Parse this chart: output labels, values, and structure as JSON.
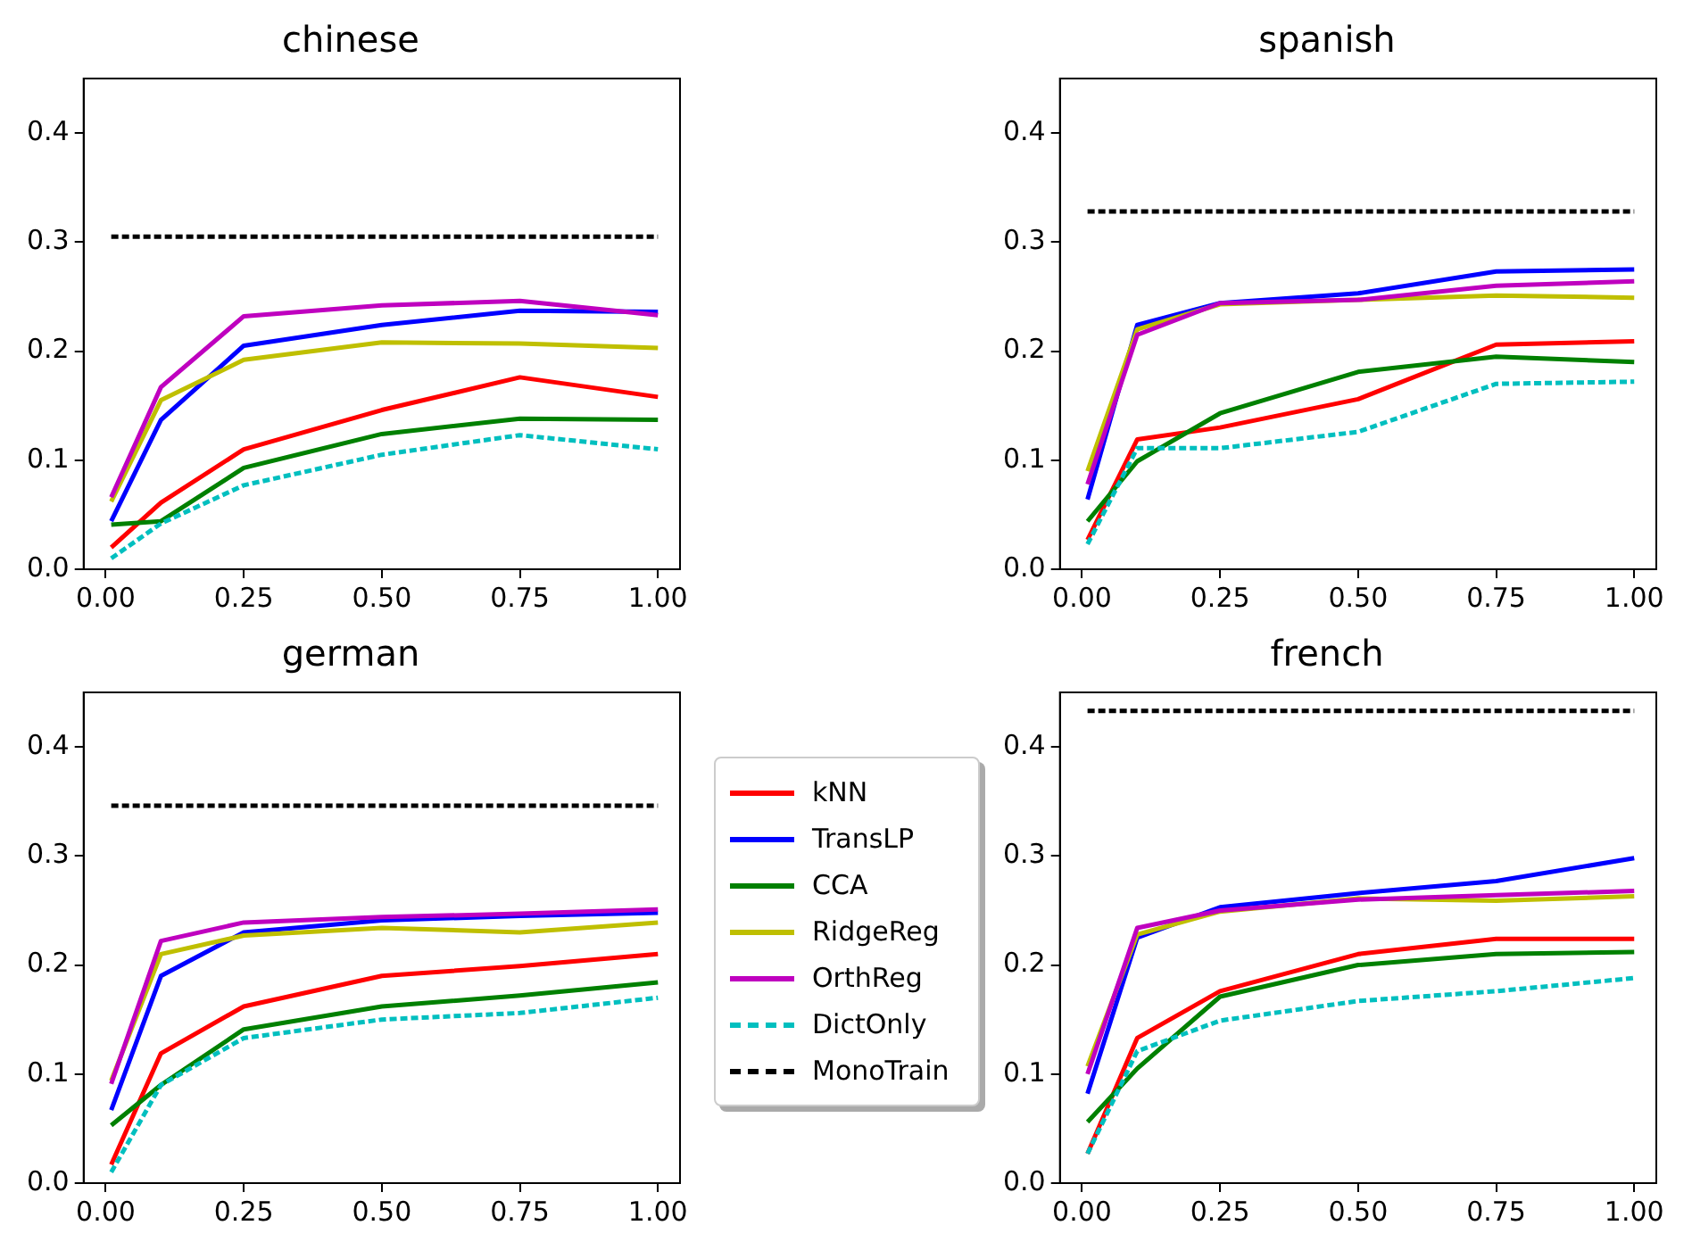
{
  "chart_data": [
    {
      "type": "line",
      "title": "chinese",
      "x": [
        0.01,
        0.1,
        0.25,
        0.5,
        0.75,
        1.0
      ],
      "xlim": [
        -0.04,
        1.04
      ],
      "xticks": [
        {
          "value": 0,
          "label": "0.00"
        },
        {
          "value": 0.25,
          "label": "0.25"
        },
        {
          "value": 0.5,
          "label": "0.50"
        },
        {
          "value": 0.75,
          "label": "0.75"
        },
        {
          "value": 1,
          "label": "1.00"
        }
      ],
      "ylim": [
        0,
        0.45
      ],
      "yticks": [
        {
          "value": 0,
          "label": "0.0"
        },
        {
          "value": 0.1,
          "label": "0.1"
        },
        {
          "value": 0.2,
          "label": "0.2"
        },
        {
          "value": 0.3,
          "label": "0.3"
        },
        {
          "value": 0.4,
          "label": "0.4"
        }
      ],
      "grid": false,
      "marker": "none",
      "series": [
        {
          "color": "#ff0000",
          "values": [
            0.02,
            0.061,
            0.11,
            0.146,
            0.176,
            0.158
          ]
        },
        {
          "color": "#0000ff",
          "values": [
            0.044,
            0.137,
            0.205,
            0.224,
            0.237,
            0.236
          ]
        },
        {
          "color": "#008000",
          "values": [
            0.041,
            0.044,
            0.093,
            0.124,
            0.138,
            0.137
          ]
        },
        {
          "color": "#bfbf00",
          "values": [
            0.062,
            0.155,
            0.192,
            0.208,
            0.207,
            0.203
          ]
        },
        {
          "color": "#bf00bf",
          "values": [
            0.066,
            0.167,
            0.232,
            0.242,
            0.246,
            0.233
          ]
        },
        {
          "color": "#00bfbf",
          "line_style": "dashed",
          "values": [
            0.01,
            0.042,
            0.077,
            0.105,
            0.123,
            0.11
          ]
        },
        {
          "color": "#000000",
          "line_style": "dashed",
          "values": [
            0.305,
            0.305,
            0.305,
            0.305,
            0.305,
            0.305
          ]
        }
      ]
    },
    {
      "type": "line",
      "title": "spanish",
      "x": [
        0.01,
        0.1,
        0.25,
        0.5,
        0.75,
        1.0
      ],
      "xlim": [
        -0.04,
        1.04
      ],
      "xticks": [
        {
          "value": 0,
          "label": "0.00"
        },
        {
          "value": 0.25,
          "label": "0.25"
        },
        {
          "value": 0.5,
          "label": "0.50"
        },
        {
          "value": 0.75,
          "label": "0.75"
        },
        {
          "value": 1,
          "label": "1.00"
        }
      ],
      "ylim": [
        0,
        0.45
      ],
      "yticks": [
        {
          "value": 0,
          "label": "0.0"
        },
        {
          "value": 0.1,
          "label": "0.1"
        },
        {
          "value": 0.2,
          "label": "0.2"
        },
        {
          "value": 0.3,
          "label": "0.3"
        },
        {
          "value": 0.4,
          "label": "0.4"
        }
      ],
      "grid": false,
      "marker": "none",
      "series": [
        {
          "color": "#ff0000",
          "values": [
            0.027,
            0.119,
            0.13,
            0.156,
            0.206,
            0.209
          ]
        },
        {
          "color": "#0000ff",
          "values": [
            0.064,
            0.224,
            0.244,
            0.253,
            0.273,
            0.275
          ]
        },
        {
          "color": "#008000",
          "values": [
            0.044,
            0.099,
            0.143,
            0.181,
            0.195,
            0.19
          ]
        },
        {
          "color": "#bfbf00",
          "values": [
            0.09,
            0.22,
            0.243,
            0.247,
            0.251,
            0.249
          ]
        },
        {
          "color": "#bf00bf",
          "values": [
            0.078,
            0.215,
            0.244,
            0.247,
            0.26,
            0.264
          ]
        },
        {
          "color": "#00bfbf",
          "line_style": "dashed",
          "values": [
            0.023,
            0.111,
            0.111,
            0.126,
            0.17,
            0.172
          ]
        },
        {
          "color": "#000000",
          "line_style": "dashed",
          "values": [
            0.328,
            0.328,
            0.328,
            0.328,
            0.328,
            0.328
          ]
        }
      ]
    },
    {
      "type": "line",
      "title": "german",
      "x": [
        0.01,
        0.1,
        0.25,
        0.5,
        0.75,
        1.0
      ],
      "xlim": [
        -0.04,
        1.04
      ],
      "xticks": [
        {
          "value": 0,
          "label": "0.00"
        },
        {
          "value": 0.25,
          "label": "0.25"
        },
        {
          "value": 0.5,
          "label": "0.50"
        },
        {
          "value": 0.75,
          "label": "0.75"
        },
        {
          "value": 1,
          "label": "1.00"
        }
      ],
      "ylim": [
        0,
        0.45
      ],
      "yticks": [
        {
          "value": 0,
          "label": "0.0"
        },
        {
          "value": 0.1,
          "label": "0.1"
        },
        {
          "value": 0.2,
          "label": "0.2"
        },
        {
          "value": 0.3,
          "label": "0.3"
        },
        {
          "value": 0.4,
          "label": "0.4"
        }
      ],
      "grid": false,
      "marker": "none",
      "series": [
        {
          "color": "#ff0000",
          "values": [
            0.017,
            0.119,
            0.162,
            0.19,
            0.199,
            0.21
          ]
        },
        {
          "color": "#0000ff",
          "values": [
            0.067,
            0.19,
            0.23,
            0.241,
            0.245,
            0.248
          ]
        },
        {
          "color": "#008000",
          "values": [
            0.053,
            0.09,
            0.141,
            0.162,
            0.172,
            0.184
          ]
        },
        {
          "color": "#bfbf00",
          "values": [
            0.094,
            0.21,
            0.227,
            0.234,
            0.23,
            0.239
          ]
        },
        {
          "color": "#bf00bf",
          "values": [
            0.091,
            0.222,
            0.239,
            0.244,
            0.247,
            0.251
          ]
        },
        {
          "color": "#00bfbf",
          "line_style": "dashed",
          "values": [
            0.01,
            0.09,
            0.133,
            0.15,
            0.156,
            0.17
          ]
        },
        {
          "color": "#000000",
          "line_style": "dashed",
          "values": [
            0.346,
            0.346,
            0.346,
            0.346,
            0.346,
            0.346
          ]
        }
      ]
    },
    {
      "type": "line",
      "title": "french",
      "x": [
        0.01,
        0.1,
        0.25,
        0.5,
        0.75,
        1.0
      ],
      "xlim": [
        -0.04,
        1.04
      ],
      "xticks": [
        {
          "value": 0,
          "label": "0.00"
        },
        {
          "value": 0.25,
          "label": "0.25"
        },
        {
          "value": 0.5,
          "label": "0.50"
        },
        {
          "value": 0.75,
          "label": "0.75"
        },
        {
          "value": 1,
          "label": "1.00"
        }
      ],
      "ylim": [
        0,
        0.45
      ],
      "yticks": [
        {
          "value": 0,
          "label": "0.0"
        },
        {
          "value": 0.1,
          "label": "0.1"
        },
        {
          "value": 0.2,
          "label": "0.2"
        },
        {
          "value": 0.3,
          "label": "0.3"
        },
        {
          "value": 0.4,
          "label": "0.4"
        }
      ],
      "grid": false,
      "marker": "none",
      "legend": "left",
      "series": [
        {
          "name": "kNN",
          "color": "#ff0000",
          "values": [
            0.027,
            0.133,
            0.176,
            0.21,
            0.224,
            0.224
          ]
        },
        {
          "name": "TransLP",
          "color": "#0000ff",
          "values": [
            0.082,
            0.225,
            0.253,
            0.266,
            0.277,
            0.298
          ]
        },
        {
          "name": "CCA",
          "color": "#008000",
          "values": [
            0.056,
            0.105,
            0.171,
            0.2,
            0.21,
            0.212
          ]
        },
        {
          "name": "RidgeReg",
          "color": "#bfbf00",
          "values": [
            0.107,
            0.228,
            0.249,
            0.261,
            0.259,
            0.263
          ]
        },
        {
          "name": "OrthReg",
          "color": "#bf00bf",
          "values": [
            0.1,
            0.234,
            0.25,
            0.26,
            0.264,
            0.268
          ]
        },
        {
          "name": "DictOnly",
          "color": "#00bfbf",
          "line_style": "dashed",
          "values": [
            0.027,
            0.121,
            0.149,
            0.167,
            0.176,
            0.188
          ]
        },
        {
          "name": "MonoTrain",
          "color": "#000000",
          "line_style": "dashed",
          "values": [
            0.433,
            0.433,
            0.433,
            0.433,
            0.433,
            0.433
          ]
        }
      ]
    }
  ]
}
